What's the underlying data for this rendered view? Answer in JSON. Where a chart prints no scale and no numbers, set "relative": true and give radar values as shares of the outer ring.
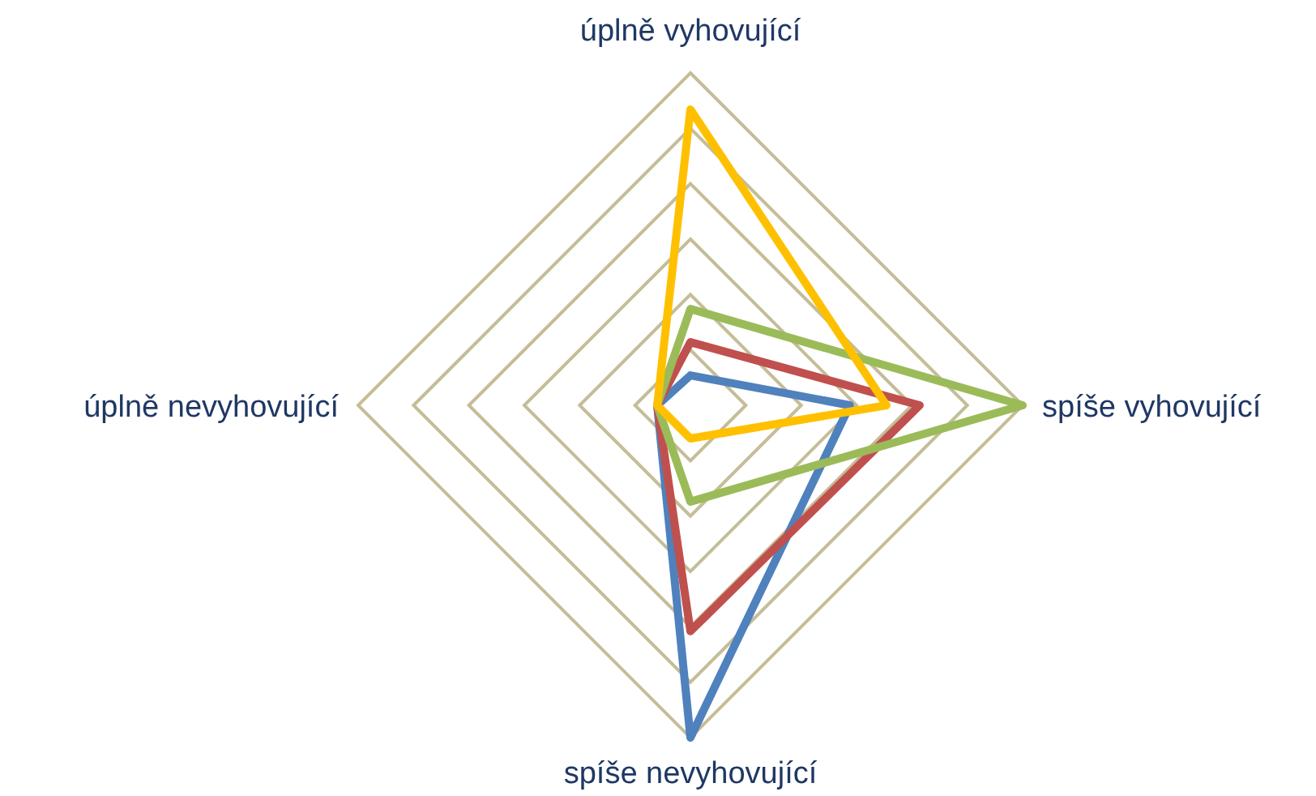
{
  "chart_data": {
    "type": "radar",
    "relative": true,
    "categories": [
      "úplně vyhovující",
      "spíše vyhovující",
      "spíše nevyhovující",
      "úplně nevyhovující"
    ],
    "series": [
      {
        "color": "#4f81bd",
        "values": [
          0.09,
          0.48,
          1.0,
          0.1
        ]
      },
      {
        "color": "#c0504d",
        "values": [
          0.19,
          0.69,
          0.68,
          0.1
        ]
      },
      {
        "color": "#9bbb59",
        "values": [
          0.29,
          1.0,
          0.29,
          0.1
        ]
      },
      {
        "color": "#ffc000",
        "values": [
          0.89,
          0.59,
          0.1,
          0.1
        ]
      }
    ]
  }
}
